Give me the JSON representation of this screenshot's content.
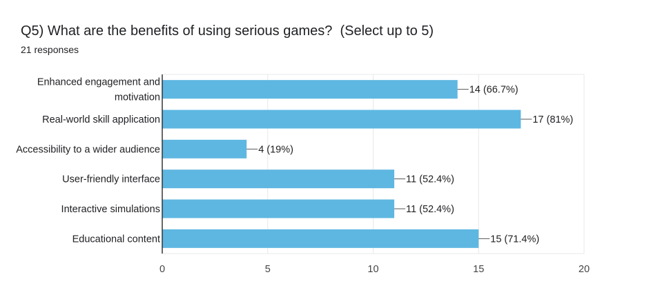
{
  "header": {
    "title": "Q5) What are the benefits of using serious games?  (Select up to 5)",
    "responses": "21 responses"
  },
  "colors": {
    "bar": "#5eb7e1",
    "grid": "#e8e8e8",
    "axis": "#333333"
  },
  "chart_data": {
    "type": "bar",
    "orientation": "horizontal",
    "title": "Q5) What are the benefits of using serious games?  (Select up to 5)",
    "categories": [
      [
        "Enhanced engagement and",
        "motivation"
      ],
      [
        "Real-world skill application"
      ],
      [
        "Accessibility to a wider audience"
      ],
      [
        "User-friendly interface"
      ],
      [
        "Interactive simulations"
      ],
      [
        "Educational content"
      ]
    ],
    "values": [
      14,
      17,
      4,
      11,
      11,
      15
    ],
    "data_labels": [
      "14 (66.7%)",
      "17 (81%)",
      "4 (19%)",
      "11 (52.4%)",
      "11 (52.4%)",
      "15 (71.4%)"
    ],
    "xlim": [
      0,
      20
    ],
    "xticks": [
      0,
      5,
      10,
      15,
      20
    ],
    "xlabel": "",
    "ylabel": "",
    "grid": true,
    "legend": "none"
  }
}
